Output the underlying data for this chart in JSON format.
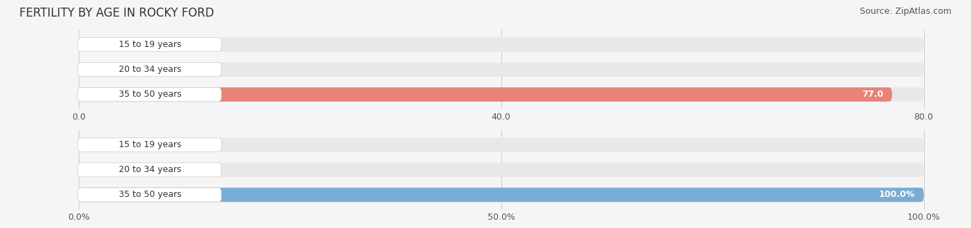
{
  "title": "FERTILITY BY AGE IN ROCKY FORD",
  "source": "Source: ZipAtlas.com",
  "top_chart": {
    "categories": [
      "15 to 19 years",
      "20 to 34 years",
      "35 to 50 years"
    ],
    "values": [
      0.0,
      0.0,
      77.0
    ],
    "xlim": [
      0,
      80.0
    ],
    "xticks": [
      0.0,
      40.0,
      80.0
    ],
    "bar_color": "#E8837A",
    "label_color_inside": "#ffffff",
    "label_color_outside": "#555555",
    "bg_color": "#f0f0f0",
    "bar_bg_color": "#e8e8e8"
  },
  "bottom_chart": {
    "categories": [
      "15 to 19 years",
      "20 to 34 years",
      "35 to 50 years"
    ],
    "values": [
      0.0,
      0.0,
      100.0
    ],
    "xlim": [
      0,
      100.0
    ],
    "xticks": [
      0.0,
      50.0,
      100.0
    ],
    "xtick_labels": [
      "0.0%",
      "50.0%",
      "100.0%"
    ],
    "bar_color": "#7AADD4",
    "label_color_inside": "#ffffff",
    "label_color_outside": "#555555",
    "bg_color": "#f0f0f0",
    "bar_bg_color": "#e8e8e8"
  },
  "label_font_size": 9,
  "category_font_size": 9,
  "tick_font_size": 9,
  "title_font_size": 12,
  "source_font_size": 9
}
